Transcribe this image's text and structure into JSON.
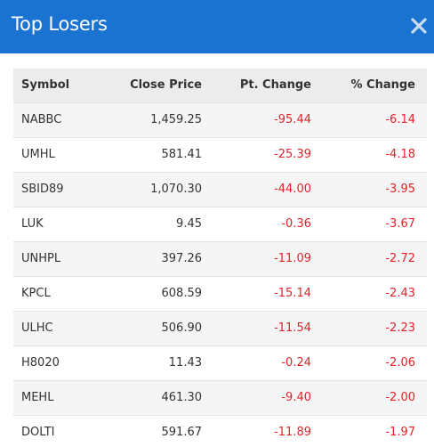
{
  "modal": {
    "title": "Top Losers",
    "close_icon": "close-icon"
  },
  "colors": {
    "header_bg": "#1a73d1",
    "negative": "#e0232b",
    "table_header_bg": "#ececec"
  },
  "table": {
    "headers": {
      "symbol": "Symbol",
      "close_price": "Close Price",
      "pt_change": "Pt. Change",
      "pct_change": "% Change"
    },
    "rows": [
      {
        "symbol": "NABBC",
        "close_price": "1,459.25",
        "pt_change": "-95.44",
        "pct_change": "-6.14"
      },
      {
        "symbol": "UMHL",
        "close_price": "581.41",
        "pt_change": "-25.39",
        "pct_change": "-4.18"
      },
      {
        "symbol": "SBID89",
        "close_price": "1,070.30",
        "pt_change": "-44.00",
        "pct_change": "-3.95"
      },
      {
        "symbol": "LUK",
        "close_price": "9.45",
        "pt_change": "-0.36",
        "pct_change": "-3.67"
      },
      {
        "symbol": "UNHPL",
        "close_price": "397.26",
        "pt_change": "-11.09",
        "pct_change": "-2.72"
      },
      {
        "symbol": "KPCL",
        "close_price": "608.59",
        "pt_change": "-15.14",
        "pct_change": "-2.43"
      },
      {
        "symbol": "ULHC",
        "close_price": "506.90",
        "pt_change": "-11.54",
        "pct_change": "-2.23"
      },
      {
        "symbol": "H8020",
        "close_price": "11.43",
        "pt_change": "-0.24",
        "pct_change": "-2.06"
      },
      {
        "symbol": "MEHL",
        "close_price": "461.30",
        "pt_change": "-9.40",
        "pct_change": "-2.00"
      },
      {
        "symbol": "DOLTI",
        "close_price": "591.67",
        "pt_change": "-11.89",
        "pct_change": "-1.97"
      }
    ]
  }
}
